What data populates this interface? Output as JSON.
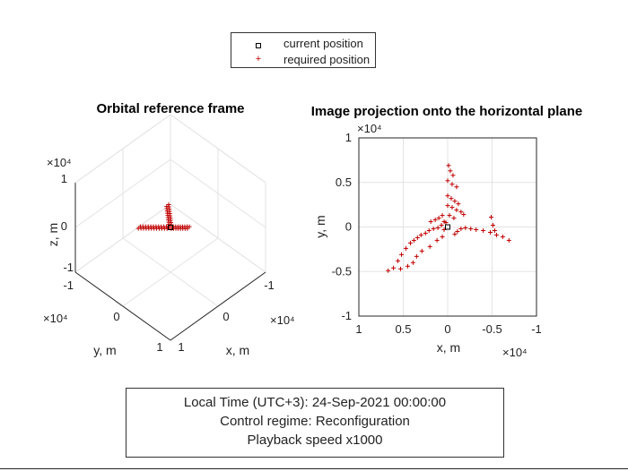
{
  "legend": {
    "current_label": "current position",
    "required_label": "required position"
  },
  "info": {
    "line1": "Local Time (UTC+3): 24-Sep-2021 00:00:00",
    "line2": "Control regime: Reconfiguration",
    "line3": "Playback speed x1000"
  },
  "colors": {
    "required": "#c00000",
    "current": "#000000",
    "grid": "#e3e3e3",
    "axis": "#262626"
  },
  "chart_data": [
    {
      "type": "scatter",
      "title": "Orbital reference frame",
      "view": "3d",
      "xlabel": "x, m",
      "ylabel": "y, m",
      "zlabel": "z, m",
      "xlim": [
        -10000,
        10000
      ],
      "ylim": [
        -10000,
        10000
      ],
      "zlim": [
        -10000,
        10000
      ],
      "x_ticks": [
        "1",
        "0",
        "-1"
      ],
      "y_ticks": [
        "-1",
        "0",
        "1"
      ],
      "z_ticks": [
        "-1",
        "0",
        "1"
      ],
      "x_exponent": "×10⁴",
      "y_exponent": "×10⁴",
      "z_exponent": "×10⁴",
      "grid": true,
      "current_position": [
        0,
        0,
        0
      ],
      "required_positions": [
        [
          -2000,
          1200,
          0
        ],
        [
          -3500,
          2400,
          0
        ],
        [
          -4800,
          3600,
          0
        ],
        [
          -6200,
          5000,
          0
        ],
        [
          1500,
          1300,
          0
        ],
        [
          2800,
          2400,
          0
        ],
        [
          4100,
          3500,
          0
        ],
        [
          5300,
          4400,
          0
        ],
        [
          700,
          -2000,
          0
        ],
        [
          1400,
          -3500,
          0
        ],
        [
          2000,
          -5000,
          0
        ],
        [
          2700,
          -6500,
          0
        ]
      ]
    },
    {
      "type": "scatter",
      "title": "Image projection onto the horizontal plane",
      "xlabel": "x, m",
      "ylabel": "y, m",
      "xlim": [
        10000,
        -10000
      ],
      "ylim": [
        -10000,
        10000
      ],
      "x_ticks": [
        "1",
        "0.5",
        "0",
        "-0.5",
        "-1"
      ],
      "y_ticks": [
        "-1",
        "-0.5",
        "0",
        "0.5",
        "1"
      ],
      "x_exponent": "×10⁴",
      "y_exponent": "×10⁴",
      "grid": true,
      "current_position": [
        0,
        0
      ],
      "required_positions": [
        [
          -100,
          6900
        ],
        [
          -300,
          6300
        ],
        [
          -600,
          5800
        ],
        [
          0,
          5200
        ],
        [
          -500,
          4800
        ],
        [
          -1000,
          4500
        ],
        [
          0,
          3500
        ],
        [
          -400,
          3200
        ],
        [
          -800,
          2900
        ],
        [
          -1200,
          2600
        ],
        [
          0,
          2400
        ],
        [
          -500,
          2200
        ],
        [
          -1000,
          1900
        ],
        [
          -1500,
          1700
        ],
        [
          -1800,
          1400
        ],
        [
          -200,
          1300
        ],
        [
          -700,
          1000
        ],
        [
          -4900,
          1100
        ],
        [
          -5100,
          200
        ],
        [
          -5300,
          -400
        ],
        [
          -6900,
          -1500
        ],
        [
          -6200,
          -1100
        ],
        [
          -5500,
          -900
        ],
        [
          -4800,
          -600
        ],
        [
          -4000,
          -400
        ],
        [
          -3200,
          -300
        ],
        [
          -2600,
          -200
        ],
        [
          -2000,
          -100
        ],
        [
          -1500,
          -200
        ],
        [
          -1100,
          -500
        ],
        [
          -800,
          -800
        ],
        [
          600,
          1300
        ],
        [
          1000,
          1000
        ],
        [
          1400,
          800
        ],
        [
          1900,
          600
        ],
        [
          400,
          600
        ],
        [
          700,
          200
        ],
        [
          1100,
          -100
        ],
        [
          1600,
          -200
        ],
        [
          2100,
          -400
        ],
        [
          2500,
          -700
        ],
        [
          3000,
          -900
        ],
        [
          3400,
          -1200
        ],
        [
          3800,
          -1500
        ],
        [
          4200,
          -1800
        ],
        [
          4700,
          -2400
        ],
        [
          5200,
          -3100
        ],
        [
          5600,
          -3800
        ],
        [
          6100,
          -4600
        ],
        [
          6700,
          -4900
        ],
        [
          200,
          500
        ],
        [
          400,
          -300
        ],
        [
          600,
          -1100
        ],
        [
          1200,
          -1500
        ],
        [
          2000,
          -2200
        ],
        [
          2900,
          -2700
        ],
        [
          3500,
          -3300
        ],
        [
          3900,
          -4000
        ],
        [
          4500,
          -4400
        ],
        [
          5300,
          -4700
        ]
      ]
    }
  ]
}
